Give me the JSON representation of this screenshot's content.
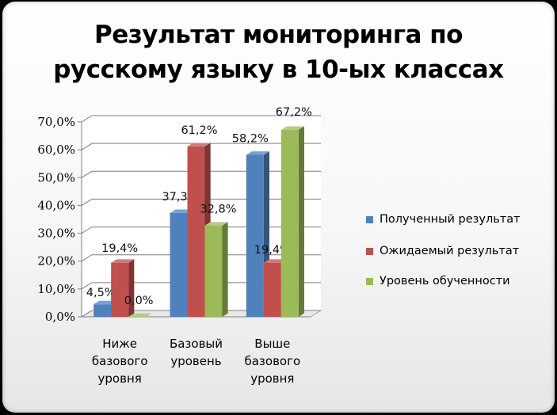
{
  "chart_data": {
    "type": "bar",
    "title_lines": [
      "Результат мониторинга по",
      "русскому языку в 10-ых классах"
    ],
    "categories": [
      [
        "Ниже",
        "базового",
        "уровня"
      ],
      [
        "Базовый",
        "уровень"
      ],
      [
        "Выше",
        "базового",
        "уровня"
      ]
    ],
    "series": [
      {
        "name": "Полученный результат",
        "values": [
          4.5,
          37.3,
          58.2
        ],
        "labels": [
          "4,5%",
          "37,3%",
          "58,2%"
        ],
        "color": "#4f81bd"
      },
      {
        "name": "Ожидаемый результат",
        "values": [
          19.4,
          61.2,
          19.4
        ],
        "labels": [
          "19,4%",
          "61,2%",
          "19,4%"
        ],
        "color": "#c0504d"
      },
      {
        "name": "Уровень обученности",
        "values": [
          0.0,
          32.8,
          67.2
        ],
        "labels": [
          "0,0%",
          "32,8%",
          "67,2%"
        ],
        "color": "#9bbb59"
      }
    ],
    "y_ticks": [
      "0,0%",
      "10,0%",
      "20,0%",
      "30,0%",
      "40,0%",
      "50,0%",
      "60,0%",
      "70,0%"
    ],
    "ylim": [
      0,
      70
    ],
    "grid": true,
    "legend_position": "right",
    "style": "3d-clustered-column"
  }
}
